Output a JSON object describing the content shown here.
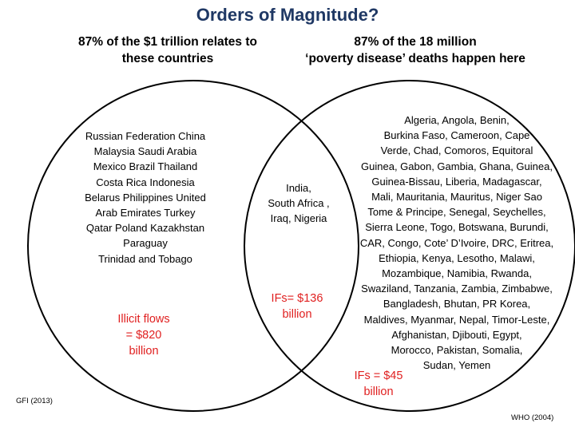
{
  "title": "Orders of Magnitude?",
  "left_heading": [
    "87% of the $1 trillion relates to",
    "these countries"
  ],
  "right_heading": [
    "87% of the 18 million",
    "‘poverty disease’ deaths happen here"
  ],
  "left_countries": [
    "Russian Federation  China",
    "Malaysia  Saudi Arabia",
    "Mexico  Brazil   Thailand",
    "Costa Rica  Indonesia",
    "Belarus   Philippines  United",
    "Arab Emirates  Turkey",
    "Qatar  Poland  Kazakhstan",
    "Paraguay",
    "Trinidad and Tobago"
  ],
  "middle_countries": [
    "India,",
    "South Africa ,",
    "Iraq,  Nigeria"
  ],
  "right_countries": [
    "Algeria, Angola, Benin,",
    "Burkina  Faso, Cameroon, Cape",
    "Verde, Chad, Comoros, Equitoral",
    "Guinea, Gabon, Gambia, Ghana, Guinea,",
    "Guinea-Bissau, Liberia, Madagascar,",
    "Mali, Mauritania, Mauritus, Niger Sao",
    "Tome & Principe, Senegal, Seychelles,",
    "Sierra Leone, Togo, Botswana, Burundi,",
    "CAR, Congo, Cote’ D’Ivoire, DRC, Eritrea,",
    "Ethiopia, Kenya, Lesotho, Malawi,",
    "Mozambique, Namibia, Rwanda,",
    "Swaziland, Tanzania, Zambia, Zimbabwe,",
    "Bangladesh, Bhutan, PR Korea,",
    "Maldives, Myanmar, Nepal, Timor-Leste,",
    "Afghanistan, Djibouti, Egypt,",
    "Morocco, Pakistan, Somalia,",
    "Sudan, Yemen"
  ],
  "left_flow": [
    "Illicit flows",
    "= $820",
    "billion"
  ],
  "middle_flow": [
    "IFs= $136",
    "billion"
  ],
  "right_flow": [
    "IFs = $45",
    "billion"
  ],
  "left_source": "GFI (2013)",
  "right_source": "WHO (2004)"
}
